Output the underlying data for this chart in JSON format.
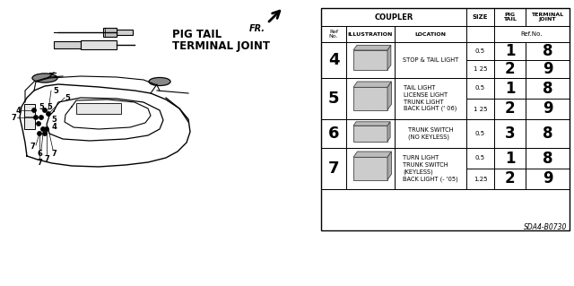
{
  "bg_color": "#ffffff",
  "part_code": "SDA4-B0730",
  "pig_tail_label": "PIG TAIL",
  "terminal_joint_label": "TERMINAL JOINT",
  "table": {
    "rows": [
      {
        "ref": "4",
        "location": "STOP & TAIL LIGHT",
        "sub_rows": [
          {
            "size": "0.5",
            "pig_tail": "1",
            "terminal_joint": "8"
          },
          {
            "size": "1 25",
            "pig_tail": "2",
            "terminal_joint": "9"
          }
        ]
      },
      {
        "ref": "5",
        "location": "TAIL LIGHT\nLICENSE LIGHT\nTRUNK LIGHT\nBACK LIGHT (' 06)",
        "sub_rows": [
          {
            "size": "0.5",
            "pig_tail": "1",
            "terminal_joint": "8"
          },
          {
            "size": "1 25",
            "pig_tail": "2",
            "terminal_joint": "9"
          }
        ]
      },
      {
        "ref": "6",
        "location": "TRUNK SWITCH\n(NO KEYLESS)",
        "sub_rows": [
          {
            "size": "0.5",
            "pig_tail": "3",
            "terminal_joint": "8"
          }
        ]
      },
      {
        "ref": "7",
        "location": "TURN LIGHT\nTRUNK SWITCH\n(KEYLESS)\nBACK LIGHT (- '05)",
        "sub_rows": [
          {
            "size": "0.5",
            "pig_tail": "1",
            "terminal_joint": "8"
          },
          {
            "size": "1.25",
            "pig_tail": "2",
            "terminal_joint": "9"
          }
        ]
      }
    ]
  }
}
